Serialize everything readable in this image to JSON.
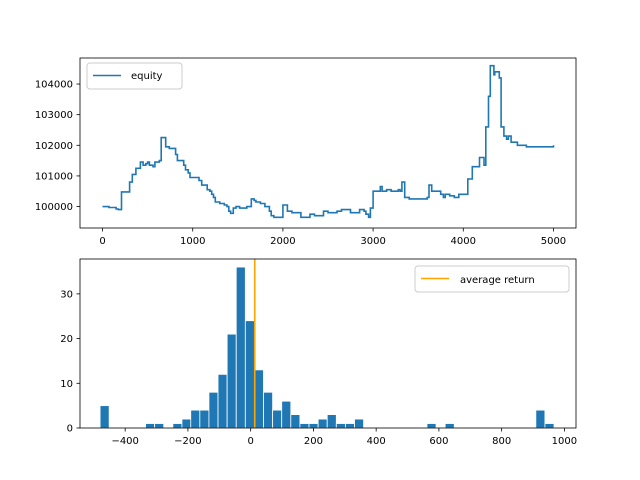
{
  "chart_data": [
    {
      "type": "line",
      "title": "",
      "xlabel": "",
      "ylabel": "",
      "xlim": [
        -250,
        5250
      ],
      "ylim": [
        99300,
        104850
      ],
      "xticks": [
        0,
        1000,
        2000,
        3000,
        4000,
        5000
      ],
      "yticks": [
        100000,
        101000,
        102000,
        103000,
        104000
      ],
      "legend": {
        "position": "upper-left",
        "entries": [
          "equity"
        ]
      },
      "series": [
        {
          "name": "equity",
          "color": "#1f77b4",
          "step": true,
          "x": [
            0,
            70,
            150,
            175,
            210,
            300,
            330,
            370,
            420,
            450,
            480,
            500,
            520,
            560,
            580,
            630,
            650,
            700,
            740,
            810,
            830,
            880,
            900,
            920,
            950,
            970,
            1000,
            1070,
            1100,
            1160,
            1190,
            1210,
            1230,
            1250,
            1300,
            1350,
            1380,
            1400,
            1420,
            1450,
            1480,
            1520,
            1560,
            1580,
            1600,
            1640,
            1650,
            1680,
            1700,
            1750,
            1800,
            1850,
            1870,
            1900,
            1950,
            2000,
            2050,
            2100,
            2150,
            2200,
            2250,
            2300,
            2350,
            2400,
            2450,
            2500,
            2550,
            2600,
            2650,
            2700,
            2750,
            2800,
            2850,
            2900,
            2920,
            2950,
            2970,
            3000,
            3050,
            3080,
            3100,
            3150,
            3200,
            3250,
            3280,
            3300,
            3320,
            3350,
            3400,
            3450,
            3500,
            3550,
            3600,
            3620,
            3650,
            3700,
            3750,
            3780,
            3800,
            3850,
            3900,
            3950,
            4000,
            4050,
            4100,
            4180,
            4230,
            4250,
            4280,
            4300,
            4340,
            4350,
            4400,
            4420,
            4450,
            4480,
            4500,
            4530,
            4600,
            4620,
            4650,
            4700,
            4720,
            4750,
            4800,
            4850,
            4900,
            4950,
            5000
          ],
          "y": [
            100000,
            99970,
            99920,
            99900,
            100480,
            100800,
            101050,
            101250,
            101450,
            101350,
            101400,
            101450,
            101350,
            101300,
            101450,
            101500,
            102250,
            101950,
            101900,
            101700,
            101500,
            101500,
            101350,
            101200,
            101100,
            100950,
            100950,
            100850,
            100700,
            100550,
            100500,
            100400,
            100300,
            100150,
            100100,
            100050,
            100000,
            99850,
            99780,
            99950,
            100000,
            99950,
            99950,
            99950,
            100000,
            100000,
            100250,
            100200,
            100150,
            100100,
            100000,
            99850,
            99700,
            99650,
            99650,
            100050,
            99850,
            99800,
            99800,
            99650,
            99650,
            99750,
            99700,
            99700,
            99850,
            99800,
            99800,
            99850,
            99900,
            99900,
            99800,
            99800,
            99900,
            99850,
            99750,
            99650,
            99950,
            100500,
            100500,
            100650,
            100500,
            100550,
            100500,
            100500,
            100550,
            100500,
            100800,
            100300,
            100250,
            100250,
            100250,
            100250,
            100300,
            100700,
            100500,
            100500,
            100400,
            100300,
            100400,
            100350,
            100300,
            100400,
            100400,
            100900,
            101300,
            101600,
            101350,
            102600,
            103600,
            104600,
            104300,
            104400,
            104200,
            102600,
            102300,
            102200,
            102300,
            102100,
            102000,
            102000,
            102000,
            101950,
            101950,
            101950,
            101950,
            101950,
            101950,
            101950,
            102000
          ]
        }
      ]
    },
    {
      "type": "bar",
      "subtype": "histogram",
      "title": "",
      "xlabel": "",
      "ylabel": "",
      "xlim": [
        -544,
        1037
      ],
      "ylim": [
        0,
        37.8
      ],
      "xticks": [
        -400,
        -200,
        0,
        200,
        400,
        600,
        800,
        1000
      ],
      "yticks": [
        0,
        10,
        20,
        30
      ],
      "legend": {
        "position": "upper-right",
        "entries": [
          "average return"
        ]
      },
      "bin_width": 28.9,
      "bar_color": "#1f77b4",
      "bins_start": [
        -480,
        -335,
        -306,
        -248,
        -219,
        -191,
        -162,
        -133,
        -104,
        -75,
        -46,
        -17,
        12,
        41,
        70,
        99,
        128,
        157,
        186,
        215,
        244,
        273,
        302,
        331,
        562,
        620,
        909,
        938
      ],
      "counts": [
        5,
        1,
        1,
        1,
        2,
        4,
        4,
        8,
        12,
        21,
        36,
        24,
        13,
        8,
        4,
        6,
        3,
        1,
        1,
        2,
        3,
        1,
        1,
        2,
        1,
        1,
        4,
        1
      ],
      "average_return": 13,
      "average_return_color": "#ffa500",
      "series": [
        {
          "name": "average return",
          "value": 13,
          "color": "#ffa500"
        }
      ]
    }
  ]
}
